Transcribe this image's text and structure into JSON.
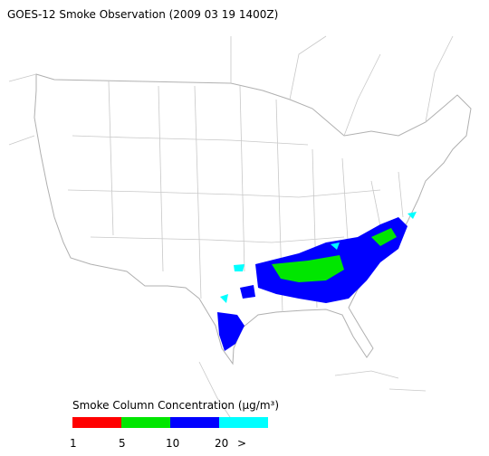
{
  "title": "GOES-12 Smoke Observation (2009 03 19  1400Z)",
  "legend": {
    "label": "Smoke Column Concentration (µg/m³)",
    "colors": [
      "#ff0000",
      "#00e600",
      "#0000ff",
      "#00ffff"
    ],
    "ticks": [
      "1",
      "5",
      "10",
      "20",
      ">"
    ]
  }
}
